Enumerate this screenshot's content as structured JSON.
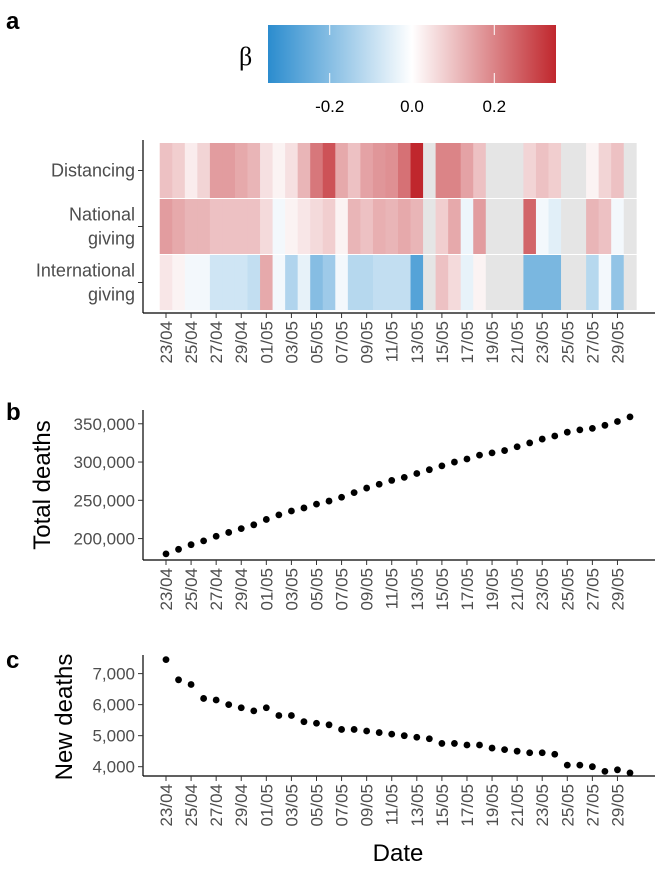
{
  "chart_data": [
    {
      "type": "heatmap",
      "panel": "a",
      "rows": [
        "Distancing",
        "National\ngiving",
        "International\ngiving"
      ],
      "dates": [
        "23/04",
        "24/04",
        "25/04",
        "26/04",
        "27/04",
        "28/04",
        "29/04",
        "30/04",
        "01/05",
        "02/05",
        "03/05",
        "04/05",
        "05/05",
        "06/05",
        "07/05",
        "08/05",
        "09/05",
        "10/05",
        "11/05",
        "12/05",
        "13/05",
        "14/05",
        "15/05",
        "16/05",
        "17/05",
        "18/05",
        "19/05",
        "20/05",
        "21/05",
        "22/05",
        "23/05",
        "24/05",
        "25/05",
        "26/05",
        "27/05",
        "28/05",
        "29/05",
        "30/05"
      ],
      "x_tick_labels": [
        "23/04",
        "25/04",
        "27/04",
        "29/04",
        "01/05",
        "03/05",
        "05/05",
        "07/05",
        "09/05",
        "11/05",
        "13/05",
        "15/05",
        "17/05",
        "19/05",
        "21/05",
        "23/05",
        "25/05",
        "27/05",
        "29/05"
      ],
      "values": [
        [
          0.1,
          0.08,
          0.03,
          0.07,
          0.16,
          0.16,
          0.14,
          0.12,
          0.05,
          0.02,
          0.05,
          0.12,
          0.22,
          0.28,
          0.14,
          0.1,
          0.15,
          0.17,
          0.18,
          0.23,
          0.4,
          null,
          0.2,
          0.2,
          0.15,
          0.1,
          null,
          null,
          null,
          0.07,
          0.1,
          0.08,
          null,
          null,
          0.02,
          0.07,
          0.1,
          null
        ],
        [
          0.16,
          0.14,
          0.12,
          0.12,
          0.1,
          0.1,
          0.1,
          0.1,
          0.06,
          -0.02,
          0.02,
          0.04,
          0.06,
          0.08,
          0.02,
          0.12,
          0.1,
          0.13,
          0.12,
          0.14,
          0.12,
          null,
          0.08,
          0.14,
          -0.03,
          0.16,
          null,
          null,
          null,
          0.25,
          -0.02,
          -0.05,
          null,
          null,
          0.12,
          0.1,
          -0.02,
          null
        ],
        [
          0.04,
          0.02,
          -0.02,
          -0.02,
          -0.08,
          -0.08,
          -0.08,
          -0.1,
          0.14,
          -0.02,
          -0.13,
          -0.04,
          -0.2,
          -0.16,
          -0.02,
          -0.12,
          -0.12,
          -0.1,
          -0.1,
          -0.1,
          -0.28,
          null,
          0.1,
          0.06,
          -0.04,
          0.02,
          null,
          null,
          null,
          -0.22,
          -0.22,
          -0.22,
          null,
          null,
          -0.12,
          -0.02,
          -0.18,
          null
        ]
      ],
      "colorbar": {
        "title": "β",
        "ticks": [
          -0.2,
          0.0,
          0.2
        ],
        "tick_labels": [
          "-0.2",
          "0.0",
          "0.2"
        ],
        "range": [
          -0.35,
          0.35
        ],
        "low_color": "#2b8cce",
        "mid_color": "#ffffff",
        "high_color": "#c0272d",
        "na_color": "#e5e5e5"
      }
    },
    {
      "type": "scatter",
      "panel": "b",
      "ylabel": "Total deaths",
      "ylim": [
        172000,
        368000
      ],
      "y_ticks": [
        200000,
        250000,
        300000,
        350000
      ],
      "y_tick_labels": [
        "200,000",
        "250,000",
        "300,000",
        "350,000"
      ],
      "x_tick_labels": [
        "23/04",
        "25/04",
        "27/04",
        "29/04",
        "01/05",
        "03/05",
        "05/05",
        "07/05",
        "09/05",
        "11/05",
        "13/05",
        "15/05",
        "17/05",
        "19/05",
        "21/05",
        "23/05",
        "25/05",
        "27/05",
        "29/05"
      ],
      "x": [
        "23/04",
        "24/04",
        "25/04",
        "26/04",
        "27/04",
        "28/04",
        "29/04",
        "30/04",
        "01/05",
        "02/05",
        "03/05",
        "04/05",
        "05/05",
        "06/05",
        "07/05",
        "08/05",
        "09/05",
        "10/05",
        "11/05",
        "12/05",
        "13/05",
        "14/05",
        "15/05",
        "16/05",
        "17/05",
        "18/05",
        "19/05",
        "20/05",
        "21/05",
        "22/05",
        "23/05",
        "24/05",
        "25/05",
        "26/05",
        "27/05",
        "28/05",
        "29/05",
        "30/05"
      ],
      "y": [
        180000,
        186000,
        192000,
        197000,
        203000,
        208000,
        213000,
        218000,
        225000,
        231000,
        236000,
        240000,
        245000,
        249000,
        254000,
        260000,
        266000,
        271000,
        276000,
        280000,
        285000,
        290000,
        295000,
        300000,
        304000,
        309000,
        312000,
        315000,
        320000,
        325000,
        330000,
        334000,
        339000,
        342000,
        344000,
        348000,
        353000,
        359000
      ]
    },
    {
      "type": "scatter",
      "panel": "c",
      "xlabel": "Date",
      "ylabel": "New deaths",
      "ylim": [
        3700,
        7600
      ],
      "y_ticks": [
        4000,
        5000,
        6000,
        7000
      ],
      "y_tick_labels": [
        "4,000",
        "5,000",
        "6,000",
        "7,000"
      ],
      "x_tick_labels": [
        "23/04",
        "25/04",
        "27/04",
        "29/04",
        "01/05",
        "03/05",
        "05/05",
        "07/05",
        "09/05",
        "11/05",
        "13/05",
        "15/05",
        "17/05",
        "19/05",
        "21/05",
        "23/05",
        "25/05",
        "27/05",
        "29/05"
      ],
      "x": [
        "23/04",
        "24/04",
        "25/04",
        "26/04",
        "27/04",
        "28/04",
        "29/04",
        "30/04",
        "01/05",
        "02/05",
        "03/05",
        "04/05",
        "05/05",
        "06/05",
        "07/05",
        "08/05",
        "09/05",
        "10/05",
        "11/05",
        "12/05",
        "13/05",
        "14/05",
        "15/05",
        "16/05",
        "17/05",
        "18/05",
        "19/05",
        "20/05",
        "21/05",
        "22/05",
        "23/05",
        "24/05",
        "25/05",
        "26/05",
        "27/05",
        "28/05",
        "29/05",
        "30/05"
      ],
      "y": [
        7450,
        6800,
        6650,
        6200,
        6150,
        6000,
        5900,
        5800,
        5900,
        5650,
        5650,
        5450,
        5400,
        5350,
        5200,
        5200,
        5150,
        5100,
        5050,
        5000,
        4950,
        4900,
        4750,
        4750,
        4700,
        4700,
        4600,
        4550,
        4500,
        4450,
        4450,
        4400,
        4050,
        4050,
        4000,
        3850,
        3900,
        3800
      ]
    },
    {
      "panel_labels": [
        "a",
        "b",
        "c"
      ]
    }
  ]
}
